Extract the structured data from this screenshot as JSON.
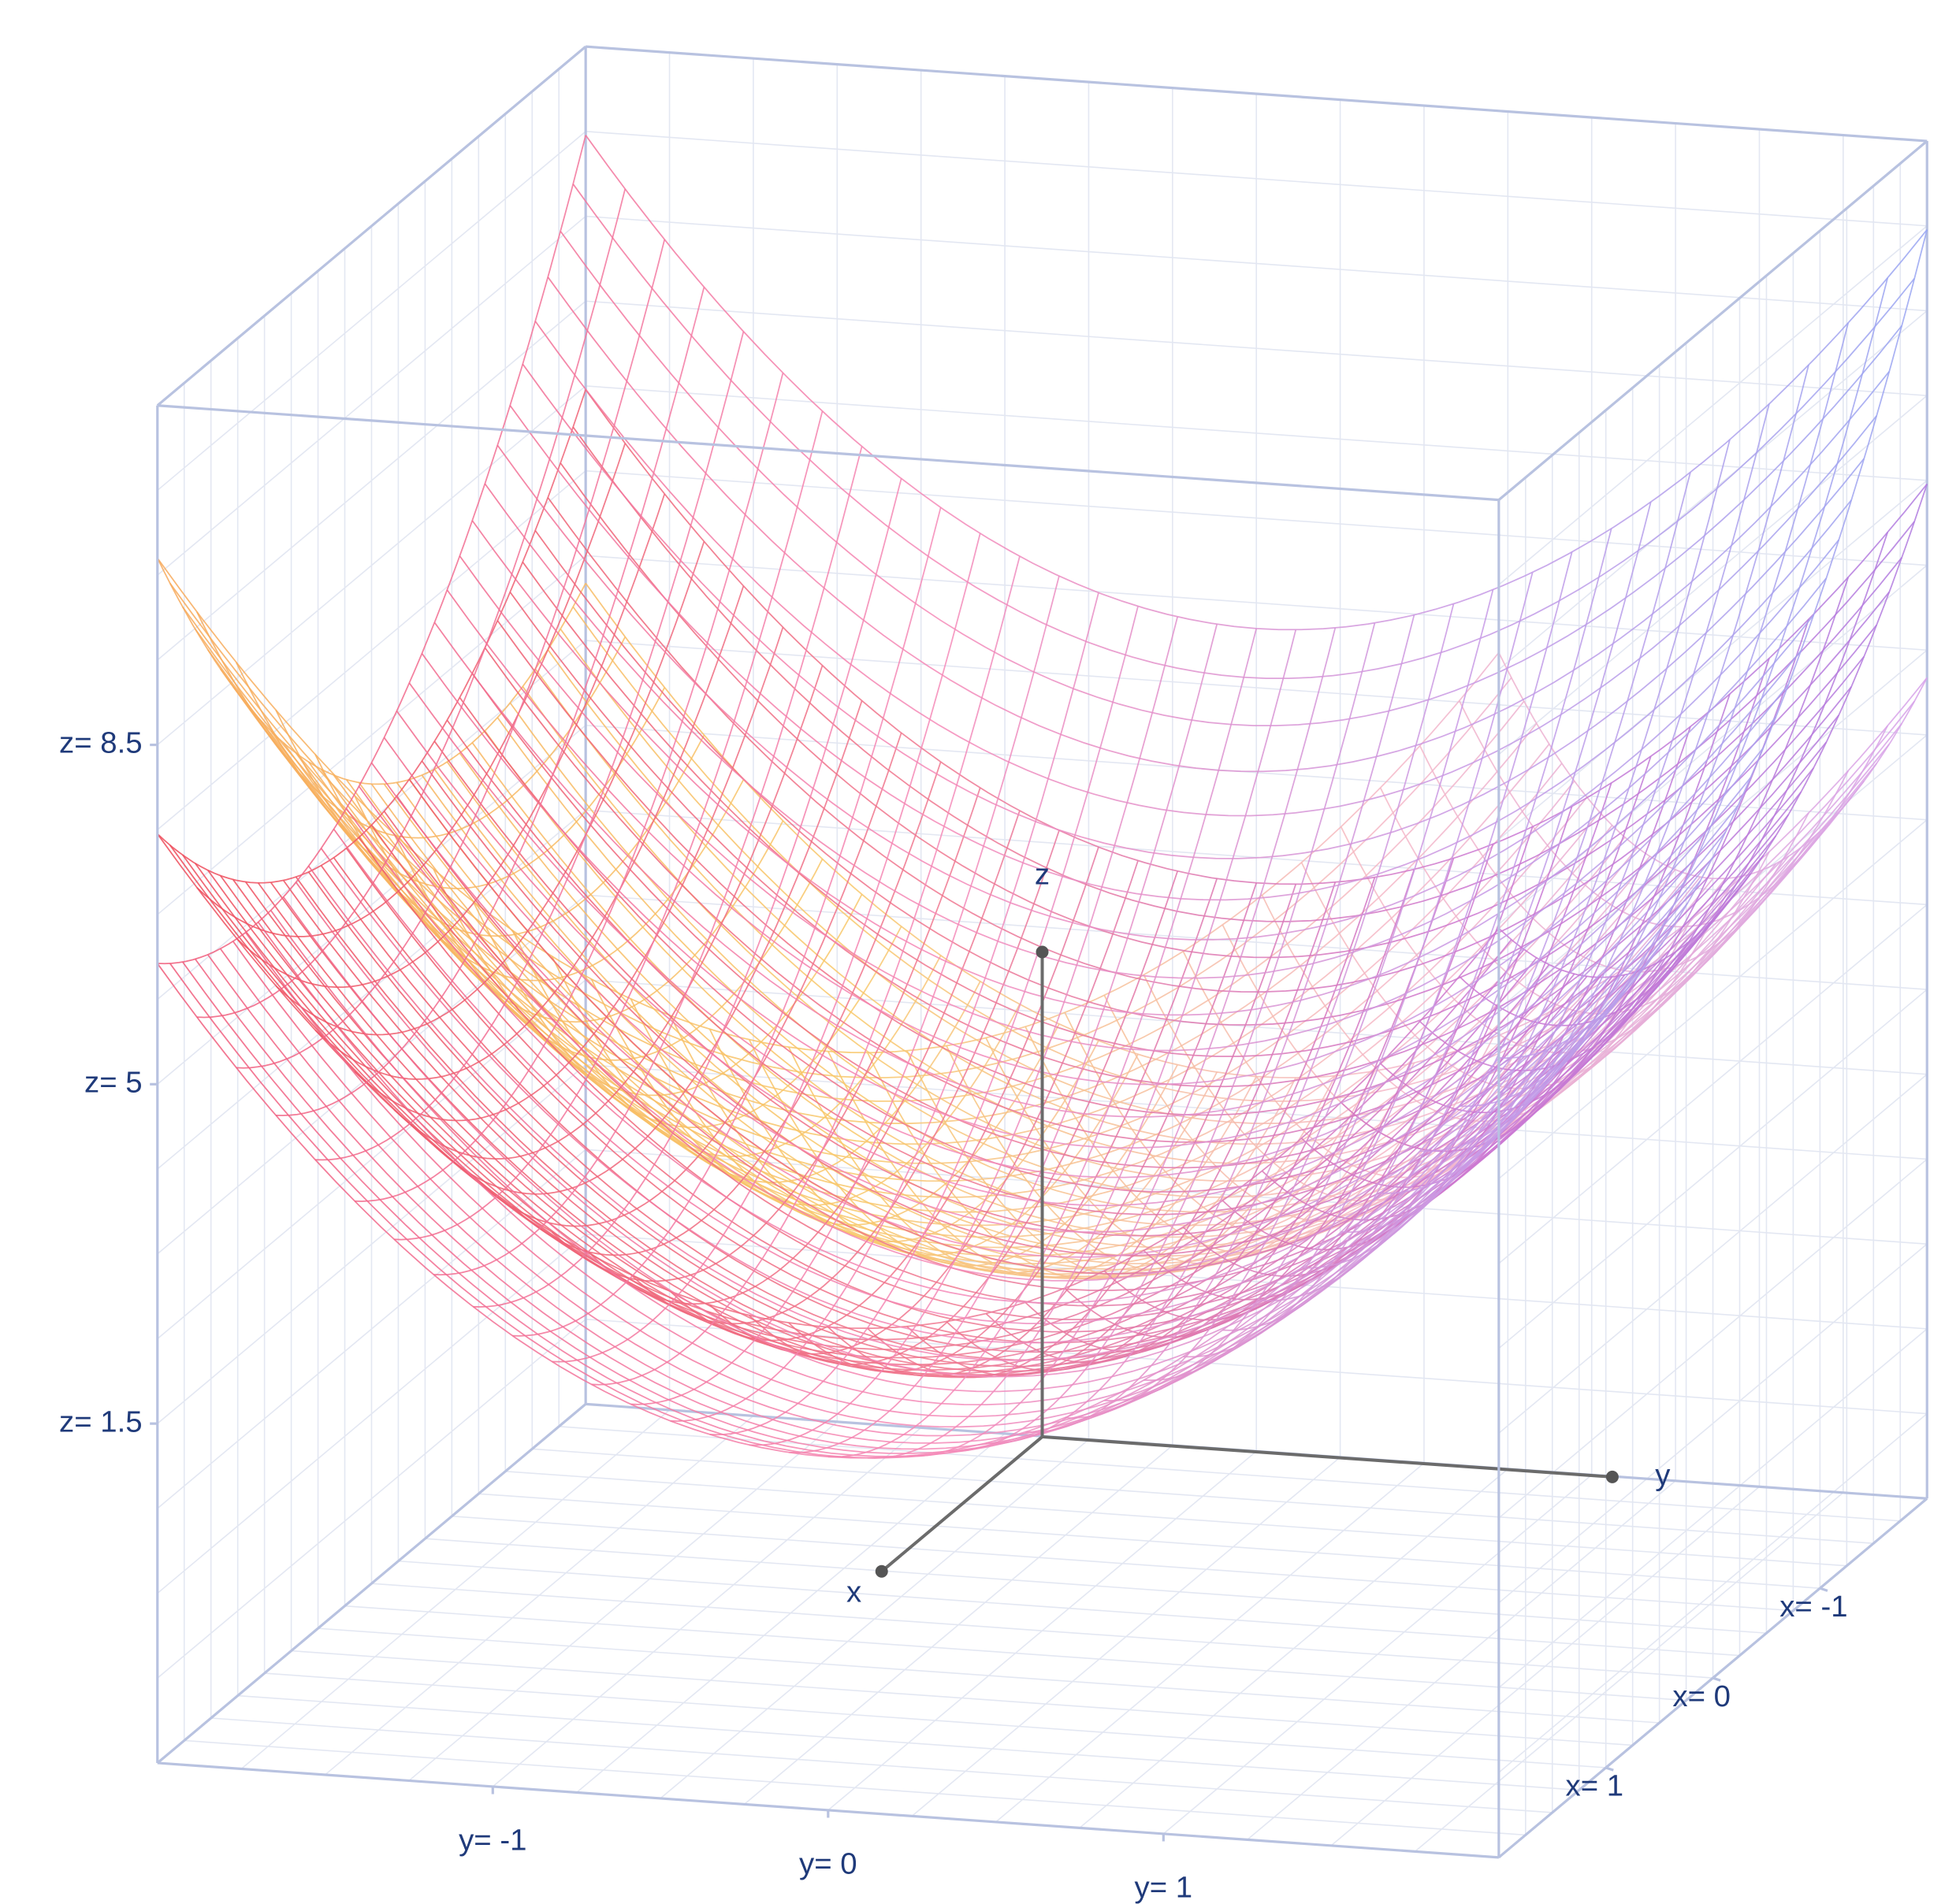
{
  "chart_data": {
    "type": "surface3d",
    "x_label": "x",
    "y_label": "y",
    "z_label": "z",
    "xlim": [
      -2,
      2
    ],
    "ylim": [
      -2,
      2
    ],
    "zlim": [
      -2,
      12
    ],
    "xticks": [
      {
        "value": -1,
        "label": "x= -1"
      },
      {
        "value": 0,
        "label": "x= 0"
      },
      {
        "value": 1,
        "label": "x= 1"
      }
    ],
    "yticks": [
      {
        "value": -1,
        "label": "y= -1"
      },
      {
        "value": 0,
        "label": "y= 0"
      },
      {
        "value": 1,
        "label": "y= 1"
      }
    ],
    "zticks": [
      {
        "value": 1.5,
        "label": "z= 1.5"
      },
      {
        "value": 5,
        "label": "z= 5"
      },
      {
        "value": 8.5,
        "label": "z= 8.5"
      }
    ]
  }
}
